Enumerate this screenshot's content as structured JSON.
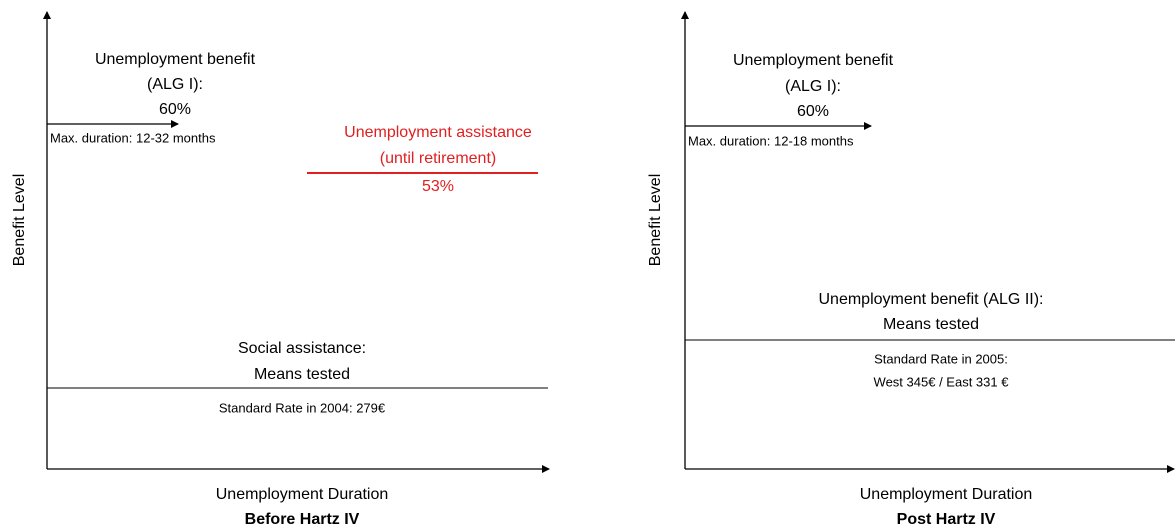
{
  "panels": [
    {
      "y_axis_label": "Benefit Level",
      "x_axis_label": "Unemployment Duration",
      "title": "Before Hartz IV",
      "alg1": {
        "lines": [
          "Unemployment benefit",
          "(ALG I):",
          "60%"
        ],
        "duration": "Max. duration: 12-32 months"
      },
      "assistance": {
        "lines": [
          "Unemployment assistance",
          "(until retirement)",
          "53%"
        ]
      },
      "floor": {
        "lines": [
          "Social assistance:",
          "Means tested"
        ],
        "rate": [
          "Standard Rate in 2004: 279€"
        ]
      }
    },
    {
      "y_axis_label": "Benefit Level",
      "x_axis_label": "Unemployment Duration",
      "title": "Post Hartz IV",
      "alg1": {
        "lines": [
          "Unemployment benefit",
          "(ALG I):",
          "60%"
        ],
        "duration": "Max. duration: 12-18 months"
      },
      "floor": {
        "lines": [
          "Unemployment benefit (ALG II):",
          "Means tested"
        ],
        "rate": [
          "Standard Rate in 2005:",
          "West 345€ / East 331 €"
        ]
      }
    }
  ]
}
